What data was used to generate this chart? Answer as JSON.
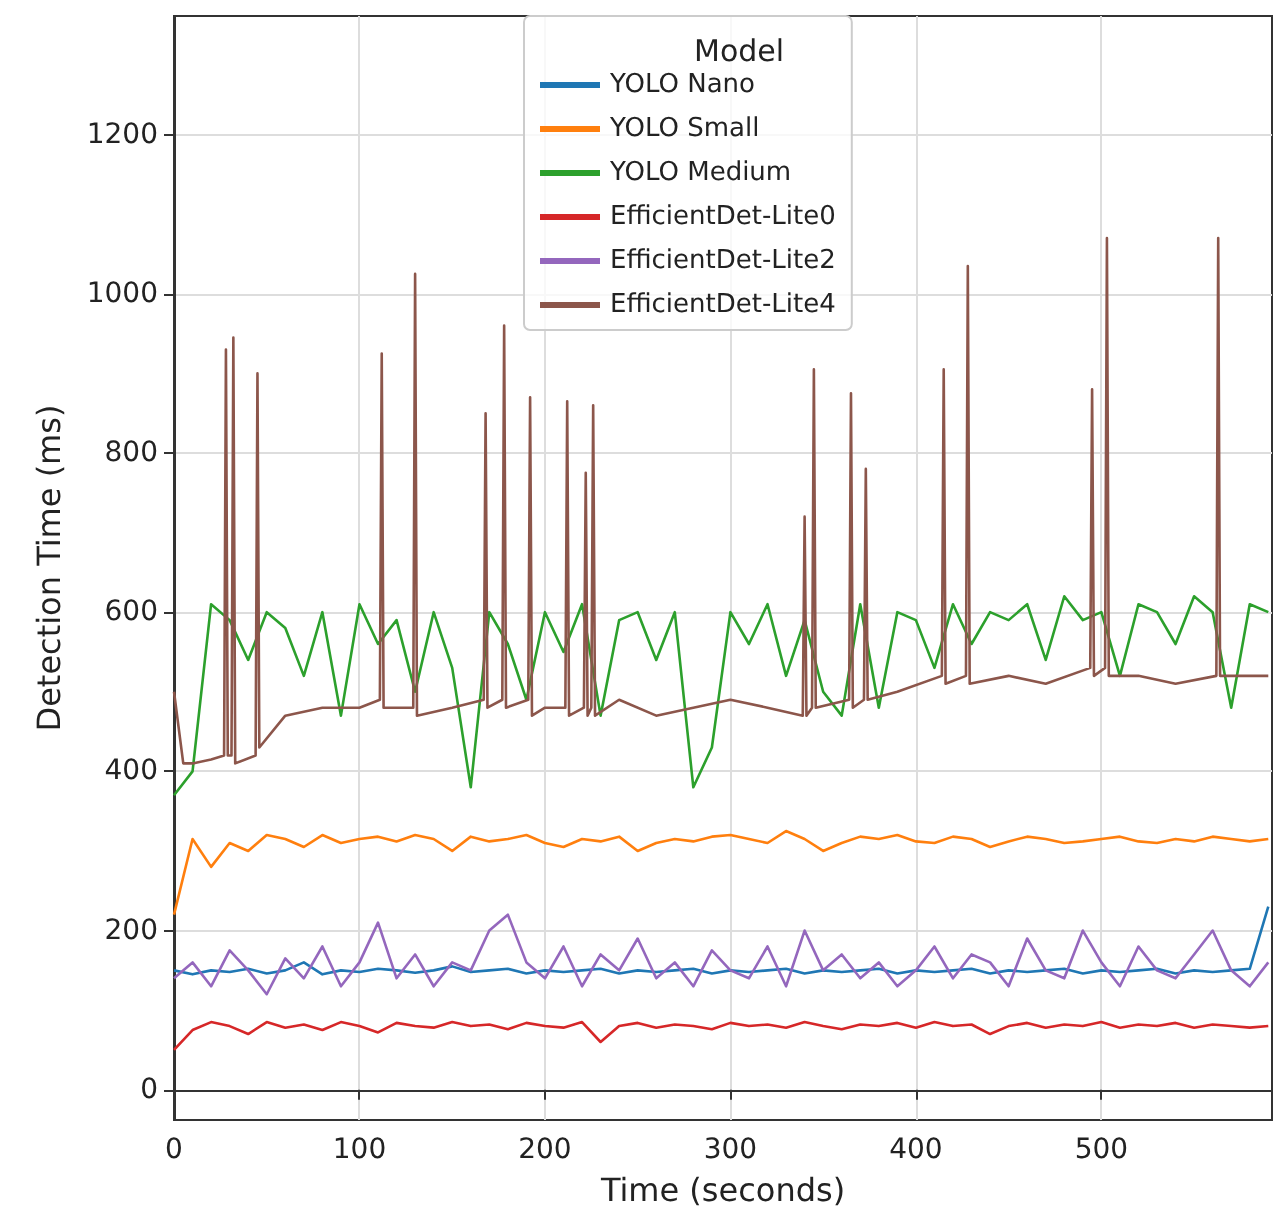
{
  "chart_data": {
    "type": "line",
    "xlabel": "Time (seconds)",
    "ylabel": "Detection Time (ms)",
    "legend_title": "Model",
    "legend": "top",
    "grid": true,
    "marker": "none",
    "line_style": "solid",
    "xlim": [
      0,
      592
    ],
    "ylim": [
      -38,
      1349
    ],
    "xticks": [
      0,
      100,
      200,
      300,
      400,
      500
    ],
    "yticks": [
      0,
      200,
      400,
      600,
      800,
      1000,
      1200
    ],
    "x": [
      0,
      10,
      20,
      30,
      40,
      50,
      60,
      70,
      80,
      90,
      100,
      110,
      120,
      130,
      140,
      150,
      160,
      170,
      180,
      190,
      200,
      210,
      220,
      230,
      240,
      250,
      260,
      270,
      280,
      290,
      300,
      310,
      320,
      330,
      340,
      350,
      360,
      370,
      380,
      390,
      400,
      410,
      420,
      430,
      440,
      450,
      460,
      470,
      480,
      490,
      500,
      510,
      520,
      530,
      540,
      550,
      560,
      570,
      580,
      590
    ],
    "series": [
      {
        "name": "YOLO Nano",
        "color": "#1f77b4",
        "values": [
          150,
          145,
          150,
          148,
          152,
          146,
          150,
          160,
          145,
          150,
          148,
          152,
          150,
          147,
          150,
          155,
          148,
          150,
          152,
          146,
          150,
          148,
          150,
          152,
          146,
          150,
          148,
          150,
          152,
          146,
          150,
          148,
          150,
          152,
          146,
          150,
          148,
          150,
          152,
          146,
          150,
          148,
          150,
          152,
          146,
          150,
          148,
          150,
          152,
          146,
          150,
          148,
          150,
          152,
          146,
          150,
          148,
          150,
          152,
          230
        ]
      },
      {
        "name": "YOLO Small",
        "color": "#ff7f0e",
        "values": [
          220,
          315,
          280,
          310,
          300,
          320,
          315,
          305,
          320,
          310,
          315,
          318,
          312,
          320,
          315,
          300,
          318,
          312,
          315,
          320,
          310,
          305,
          315,
          312,
          318,
          300,
          310,
          315,
          312,
          318,
          320,
          315,
          310,
          325,
          315,
          300,
          310,
          318,
          315,
          320,
          312,
          310,
          318,
          315,
          305,
          312,
          318,
          315,
          310,
          312,
          315,
          318,
          312,
          310,
          315,
          312,
          318,
          315,
          312,
          315
        ]
      },
      {
        "name": "YOLO Medium",
        "color": "#2ca02c",
        "values": [
          370,
          400,
          610,
          590,
          540,
          600,
          580,
          520,
          600,
          470,
          610,
          560,
          590,
          500,
          600,
          530,
          380,
          600,
          560,
          490,
          600,
          550,
          610,
          470,
          590,
          600,
          540,
          600,
          380,
          430,
          600,
          560,
          610,
          520,
          590,
          500,
          470,
          610,
          480,
          600,
          590,
          530,
          610,
          560,
          600,
          590,
          610,
          540,
          620,
          590,
          600,
          520,
          610,
          600,
          560,
          620,
          600,
          480,
          610,
          600
        ]
      },
      {
        "name": "EfficientDet-Lite0",
        "color": "#d62728",
        "values": [
          50,
          75,
          85,
          80,
          70,
          85,
          78,
          82,
          75,
          85,
          80,
          72,
          84,
          80,
          78,
          85,
          80,
          82,
          76,
          84,
          80,
          78,
          85,
          60,
          80,
          84,
          78,
          82,
          80,
          76,
          84,
          80,
          82,
          78,
          85,
          80,
          76,
          82,
          80,
          84,
          78,
          85,
          80,
          82,
          70,
          80,
          84,
          78,
          82,
          80,
          85,
          78,
          82,
          80,
          84,
          78,
          82,
          80,
          78,
          80
        ]
      },
      {
        "name": "EfficientDet-Lite2",
        "color": "#9467bd",
        "values": [
          140,
          160,
          130,
          175,
          150,
          120,
          165,
          140,
          180,
          130,
          160,
          210,
          140,
          170,
          130,
          160,
          150,
          200,
          220,
          160,
          140,
          180,
          130,
          170,
          150,
          190,
          140,
          160,
          130,
          175,
          150,
          140,
          180,
          130,
          200,
          150,
          170,
          140,
          160,
          130,
          150,
          180,
          140,
          170,
          160,
          130,
          190,
          150,
          140,
          200,
          160,
          130,
          180,
          150,
          140,
          170,
          200,
          150,
          130,
          160
        ]
      },
      {
        "name": "EfficientDet-Lite4",
        "color": "#8c564b",
        "x": [
          0,
          5,
          10,
          20,
          27,
          28,
          29,
          31,
          32,
          33,
          44,
          45,
          46,
          60,
          80,
          100,
          111,
          112,
          113,
          129,
          130,
          131,
          150,
          167,
          168,
          169,
          177,
          178,
          179,
          191,
          192,
          193,
          200,
          211,
          212,
          213,
          221,
          222,
          223,
          225,
          226,
          227,
          240,
          260,
          280,
          300,
          320,
          339,
          340,
          341,
          344,
          345,
          346,
          364,
          365,
          366,
          372,
          373,
          374,
          390,
          414,
          415,
          416,
          427,
          428,
          429,
          450,
          470,
          494,
          495,
          496,
          502,
          503,
          504,
          520,
          540,
          562,
          563,
          564,
          580,
          590
        ],
        "values": [
          500,
          410,
          410,
          415,
          420,
          930,
          420,
          420,
          945,
          410,
          420,
          900,
          430,
          470,
          480,
          480,
          490,
          925,
          480,
          480,
          1025,
          470,
          480,
          490,
          850,
          480,
          490,
          960,
          480,
          490,
          870,
          470,
          480,
          480,
          865,
          470,
          480,
          775,
          470,
          480,
          860,
          470,
          490,
          470,
          480,
          490,
          480,
          470,
          720,
          470,
          480,
          905,
          480,
          490,
          875,
          480,
          490,
          780,
          490,
          500,
          520,
          905,
          510,
          520,
          1035,
          510,
          520,
          510,
          530,
          880,
          520,
          530,
          1070,
          520,
          520,
          510,
          520,
          1070,
          520,
          520,
          520
        ]
      }
    ]
  }
}
